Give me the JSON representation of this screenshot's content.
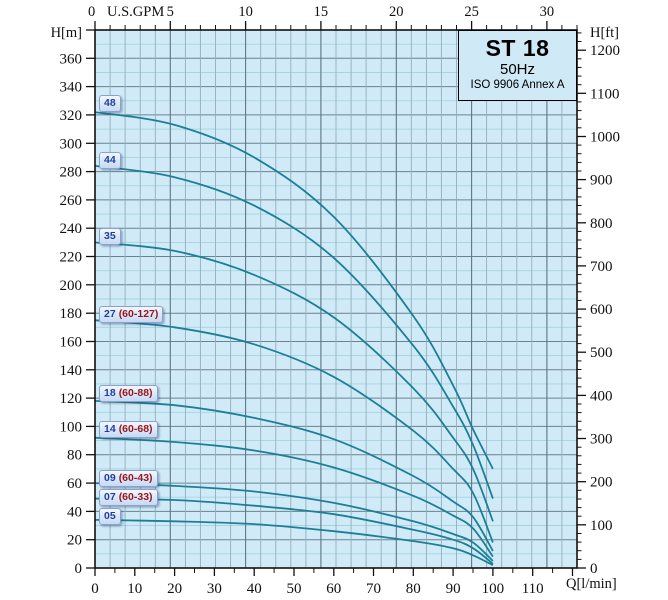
{
  "chart_data": {
    "type": "line",
    "title": "ST 18",
    "subtitle": "50Hz",
    "standard": "ISO 9906 Annex A",
    "colors": {
      "plot_bg": "#d0ebf7",
      "curve": "#1c7f98",
      "grid_v_minor": "#93aebb",
      "grid_v_major": "#5d7684",
      "grid_h_minor": "#a5d3e2",
      "grid_h_major": "#6a8290",
      "border": "#111111",
      "badge_num": "#1f3f9e",
      "badge_range": "#9b1518"
    },
    "axes": {
      "top": {
        "unit": "U.S.GPM",
        "min": 0,
        "max": 32,
        "major_step": 5,
        "minor_step": 1,
        "tick_labels": [
          0,
          5,
          10,
          15,
          20,
          25,
          30
        ]
      },
      "bottom": {
        "unit": "Q[l/min]",
        "min": 0,
        "max": 121.13,
        "major_step": 10,
        "minor_step": 5,
        "tick_labels": [
          0,
          10,
          20,
          30,
          40,
          50,
          60,
          70,
          80,
          90,
          100,
          110
        ]
      },
      "left": {
        "unit": "H[m]",
        "min": 0,
        "max": 380,
        "major_step": 20,
        "minor_step": 10,
        "tick_labels": [
          0,
          20,
          40,
          60,
          80,
          100,
          120,
          140,
          160,
          180,
          200,
          220,
          240,
          260,
          280,
          300,
          320,
          340,
          360
        ]
      },
      "right": {
        "unit": "H[ft]",
        "min": 0,
        "max": 1246,
        "major_step": 100,
        "minor_step": 20,
        "tick_labels": [
          0,
          100,
          200,
          300,
          400,
          500,
          600,
          700,
          800,
          900,
          1000,
          1100,
          1200
        ]
      }
    },
    "series": [
      {
        "label": "48",
        "range": "",
        "label_h": 328,
        "points": [
          [
            0,
            322
          ],
          [
            20,
            313
          ],
          [
            40,
            290
          ],
          [
            60,
            248
          ],
          [
            80,
            178
          ],
          [
            90,
            129
          ],
          [
            95,
            98
          ],
          [
            100,
            70
          ]
        ]
      },
      {
        "label": "44",
        "range": "",
        "label_h": 288,
        "points": [
          [
            0,
            284
          ],
          [
            20,
            276
          ],
          [
            40,
            256
          ],
          [
            60,
            219
          ],
          [
            80,
            157
          ],
          [
            90,
            114
          ],
          [
            95,
            87
          ],
          [
            100,
            49
          ]
        ]
      },
      {
        "label": "35",
        "range": "",
        "label_h": 234,
        "points": [
          [
            0,
            230
          ],
          [
            20,
            224
          ],
          [
            40,
            207
          ],
          [
            60,
            177
          ],
          [
            80,
            127
          ],
          [
            90,
            92
          ],
          [
            95,
            70
          ],
          [
            100,
            33
          ]
        ]
      },
      {
        "label": "27",
        "range": "(60-127)",
        "label_h": 179,
        "points": [
          [
            0,
            175
          ],
          [
            20,
            170
          ],
          [
            40,
            158
          ],
          [
            60,
            135
          ],
          [
            80,
            97
          ],
          [
            90,
            70
          ],
          [
            95,
            53
          ],
          [
            100,
            18
          ]
        ]
      },
      {
        "label": "18",
        "range": "(60-88)",
        "label_h": 123,
        "points": [
          [
            0,
            118
          ],
          [
            20,
            115
          ],
          [
            40,
            106
          ],
          [
            60,
            91
          ],
          [
            80,
            65
          ],
          [
            90,
            47
          ],
          [
            95,
            36
          ],
          [
            100,
            12
          ]
        ]
      },
      {
        "label": "14",
        "range": "(60-68)",
        "label_h": 97.5,
        "points": [
          [
            0,
            92
          ],
          [
            20,
            89
          ],
          [
            40,
            83
          ],
          [
            60,
            71
          ],
          [
            80,
            51
          ],
          [
            90,
            37
          ],
          [
            95,
            28
          ],
          [
            100,
            8
          ]
        ]
      },
      {
        "label": "09",
        "range": "(60-43)",
        "label_h": 63.5,
        "points": [
          [
            0,
            60
          ],
          [
            20,
            58
          ],
          [
            40,
            54
          ],
          [
            60,
            46
          ],
          [
            80,
            33
          ],
          [
            90,
            24
          ],
          [
            95,
            18
          ],
          [
            100,
            5
          ]
        ]
      },
      {
        "label": "07",
        "range": "(60-33)",
        "label_h": 50,
        "points": [
          [
            0,
            49
          ],
          [
            20,
            48
          ],
          [
            40,
            44
          ],
          [
            60,
            38
          ],
          [
            80,
            27
          ],
          [
            90,
            20
          ],
          [
            95,
            14
          ],
          [
            100,
            3
          ]
        ]
      },
      {
        "label": "05",
        "range": "",
        "label_h": 36.5,
        "points": [
          [
            0,
            34
          ],
          [
            20,
            33
          ],
          [
            40,
            31
          ],
          [
            60,
            26
          ],
          [
            80,
            19
          ],
          [
            90,
            14
          ],
          [
            95,
            9
          ],
          [
            100,
            2
          ]
        ]
      }
    ]
  }
}
